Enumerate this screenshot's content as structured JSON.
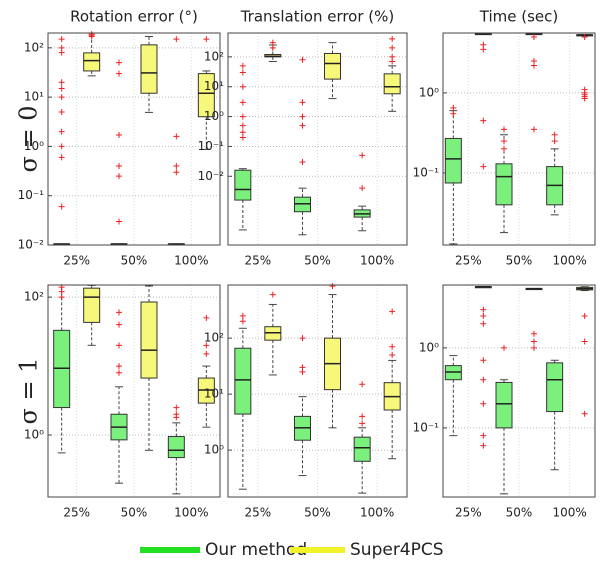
{
  "row_labels": [
    "σ = 0",
    "σ = 1"
  ],
  "chart_data": [
    {
      "type": "box",
      "title": "Rotation error (°)",
      "categories": [
        "25%",
        "50%",
        "100%"
      ],
      "log_y": true,
      "grid": true,
      "ylim": [
        0.01,
        200
      ],
      "yticks": [
        {
          "value": 0.01,
          "label": "10⁻²"
        },
        {
          "value": 0.1,
          "label": "10⁻¹"
        },
        {
          "value": 1,
          "label": "10⁰"
        },
        {
          "value": 10,
          "label": "10¹"
        },
        {
          "value": 100,
          "label": "10²"
        }
      ],
      "series": [
        {
          "name": "Our method",
          "color": "#7cf07c",
          "boxes": [
            {
              "whislo": 0.0105,
              "q1": 0.0105,
              "med": 0.0105,
              "q3": 0.0105,
              "whishi": 0.0105,
              "fliers": [
                150,
                100,
                80,
                20,
                15,
                10,
                5,
                2,
                1,
                0.6,
                0.06
              ]
            },
            {
              "whislo": 0.0105,
              "q1": 0.0105,
              "med": 0.0105,
              "q3": 0.0105,
              "whishi": 0.0105,
              "fliers": [
                50,
                30,
                1.7,
                0.4,
                0.25,
                0.03
              ]
            },
            {
              "whislo": 0.0105,
              "q1": 0.0105,
              "med": 0.0105,
              "q3": 0.0105,
              "whishi": 0.0105,
              "fliers": [
                150,
                1.6,
                0.4,
                0.3
              ]
            }
          ]
        },
        {
          "name": "Super4PCS",
          "color": "#f7f77a",
          "boxes": [
            {
              "whislo": 27,
              "q1": 34,
              "med": 55,
              "q3": 79,
              "whishi": 200,
              "fliers": [
                170,
                180,
                190
              ]
            },
            {
              "whislo": 4.9,
              "q1": 12,
              "med": 31,
              "q3": 115,
              "whishi": 170,
              "fliers": []
            },
            {
              "whislo": 0.87,
              "q1": 4,
              "med": 12,
              "q3": 30,
              "whishi": 34,
              "fliers": [
                150
              ]
            }
          ]
        }
      ]
    },
    {
      "type": "box",
      "title": "Translation error (%)",
      "categories": [
        "25%",
        "50%",
        "100%"
      ],
      "log_y": true,
      "grid": true,
      "ylim": [
        5e-05,
        630
      ],
      "yticks": [
        {
          "value": 0.01,
          "label": "10⁻²"
        },
        {
          "value": 0.1,
          "label": "10⁻¹"
        },
        {
          "value": 1,
          "label": "10⁰"
        },
        {
          "value": 10,
          "label": "10¹"
        },
        {
          "value": 100,
          "label": "10²"
        }
      ],
      "series": [
        {
          "name": "Our method",
          "color": "#7cf07c",
          "boxes": [
            {
              "whislo": 0.00016,
              "q1": 0.0016,
              "med": 0.0036,
              "q3": 0.016,
              "whishi": 0.018,
              "fliers": [
                50,
                30,
                10,
                3,
                1,
                0.5,
                0.3,
                0.2
              ]
            },
            {
              "whislo": 0.00011,
              "q1": 0.00065,
              "med": 0.0012,
              "q3": 0.002,
              "whishi": 0.004,
              "fliers": [
                80,
                3,
                1,
                0.5,
                0.03
              ]
            },
            {
              "whislo": 0.00015,
              "q1": 0.00043,
              "med": 0.00055,
              "q3": 0.00075,
              "whishi": 0.001,
              "fliers": [
                0.05,
                0.004
              ]
            }
          ]
        },
        {
          "name": "Super4PCS",
          "color": "#f7f77a",
          "boxes": [
            {
              "whislo": 70,
              "q1": 100,
              "med": 105,
              "q3": 120,
              "whishi": 250,
              "fliers": [
                300,
                200
              ]
            },
            {
              "whislo": 4,
              "q1": 18,
              "med": 60,
              "q3": 130,
              "whishi": 300,
              "fliers": []
            },
            {
              "whislo": 1.5,
              "q1": 5.8,
              "med": 10,
              "q3": 27,
              "whishi": 50,
              "fliers": [
                400,
                200,
                100,
                70
              ]
            }
          ]
        }
      ]
    },
    {
      "type": "box",
      "title": "Time (sec)",
      "categories": [
        "25%",
        "50%",
        "100%"
      ],
      "log_y": true,
      "grid": true,
      "ylim": [
        0.0126,
        5.6
      ],
      "yticks": [
        {
          "value": 0.1,
          "label": "10⁻¹"
        },
        {
          "value": 1,
          "label": "10⁰"
        }
      ],
      "series": [
        {
          "name": "Our method",
          "color": "#7cf07c",
          "boxes": [
            {
              "whislo": 0.013,
              "q1": 0.075,
              "med": 0.15,
              "q3": 0.27,
              "whishi": 0.6,
              "fliers": [
                0.65,
                0.55
              ]
            },
            {
              "whislo": 0.018,
              "q1": 0.04,
              "med": 0.09,
              "q3": 0.13,
              "whishi": 0.3,
              "fliers": [
                0.35,
                0.25,
                0.2
              ]
            },
            {
              "whislo": 0.03,
              "q1": 0.04,
              "med": 0.07,
              "q3": 0.12,
              "whishi": 0.2,
              "fliers": [
                0.3,
                0.25
              ]
            }
          ]
        },
        {
          "name": "Super4PCS",
          "color": "#f7f77a",
          "boxes": [
            {
              "whislo": 5.5,
              "q1": 5.5,
              "med": 5.5,
              "q3": 5.5,
              "whishi": 5.5,
              "fliers": [
                4,
                3.5,
                0.45,
                0.12
              ]
            },
            {
              "whislo": 5.5,
              "q1": 5.5,
              "med": 5.5,
              "q3": 5.5,
              "whishi": 5.5,
              "fliers": [
                5,
                2.5,
                2.2,
                0.35
              ]
            },
            {
              "whislo": 5.3,
              "q1": 5.3,
              "med": 5.3,
              "q3": 5.3,
              "whishi": 5.3,
              "fliers": [
                5,
                1.1,
                1,
                0.95,
                0.9,
                0.85
              ]
            }
          ]
        }
      ]
    },
    {
      "type": "box",
      "categories": [
        "25%",
        "50%",
        "100%"
      ],
      "log_y": true,
      "grid": true,
      "ylim": [
        0.126,
        150
      ],
      "yticks": [
        {
          "value": 1,
          "label": "10⁰"
        },
        {
          "value": 100,
          "label": "10²"
        }
      ],
      "series": [
        {
          "name": "Our method",
          "color": "#7cf07c",
          "boxes": [
            {
              "whislo": 0.55,
              "q1": 2.5,
              "med": 9.3,
              "q3": 33,
              "whishi": 150,
              "fliers": [
                140,
                120,
                100
              ]
            },
            {
              "whislo": 0.2,
              "q1": 0.85,
              "med": 1.3,
              "q3": 2,
              "whishi": 5,
              "fliers": [
                60,
                40,
                20,
                10,
                8
              ]
            },
            {
              "whislo": 0.14,
              "q1": 0.47,
              "med": 0.6,
              "q3": 0.95,
              "whishi": 1.5,
              "fliers": [
                2.5,
                2,
                1.8
              ]
            }
          ]
        },
        {
          "name": "Super4PCS",
          "color": "#f7f77a",
          "boxes": [
            {
              "whislo": 20,
              "q1": 43,
              "med": 100,
              "q3": 135,
              "whishi": 148,
              "fliers": []
            },
            {
              "whislo": 0.6,
              "q1": 6.7,
              "med": 17,
              "q3": 85,
              "whishi": 145,
              "fliers": []
            },
            {
              "whislo": 1.3,
              "q1": 2.9,
              "med": 4.5,
              "q3": 6.7,
              "whishi": 10,
              "fliers": [
                50,
                20,
                15
              ]
            }
          ]
        }
      ]
    },
    {
      "type": "box",
      "categories": [
        "25%",
        "50%",
        "100%"
      ],
      "log_y": true,
      "grid": true,
      "ylim": [
        0.145,
        890
      ],
      "yticks": [
        {
          "value": 1,
          "label": "10⁰"
        },
        {
          "value": 10,
          "label": "10¹"
        },
        {
          "value": 100,
          "label": "10²"
        }
      ],
      "series": [
        {
          "name": "Our method",
          "color": "#7cf07c",
          "boxes": [
            {
              "whislo": 0.2,
              "q1": 4.4,
              "med": 18,
              "q3": 66,
              "whishi": 150,
              "fliers": [
                250,
                200
              ]
            },
            {
              "whislo": 0.35,
              "q1": 1.5,
              "med": 2.5,
              "q3": 4,
              "whishi": 9,
              "fliers": [
                100,
                30,
                25
              ]
            },
            {
              "whislo": 0.17,
              "q1": 0.63,
              "med": 1.1,
              "q3": 1.7,
              "whishi": 2.5,
              "fliers": [
                15,
                4,
                3
              ]
            }
          ]
        },
        {
          "name": "Super4PCS",
          "color": "#f7f77a",
          "boxes": [
            {
              "whislo": 22,
              "q1": 92,
              "med": 125,
              "q3": 160,
              "whishi": 400,
              "fliers": [
                600
              ]
            },
            {
              "whislo": 2.5,
              "q1": 12,
              "med": 35,
              "q3": 100,
              "whishi": 600,
              "fliers": [
                850
              ]
            },
            {
              "whislo": 0.7,
              "q1": 5.2,
              "med": 9,
              "q3": 16,
              "whishi": 40,
              "fliers": [
                300,
                70,
                50
              ]
            }
          ]
        }
      ]
    },
    {
      "type": "box",
      "categories": [
        "25%",
        "50%",
        "100%"
      ],
      "log_y": true,
      "grid": true,
      "ylim": [
        0.0137,
        6.1
      ],
      "yticks": [
        {
          "value": 0.1,
          "label": "10⁻¹"
        },
        {
          "value": 1,
          "label": "10⁰"
        }
      ],
      "series": [
        {
          "name": "Our method",
          "color": "#7cf07c",
          "boxes": [
            {
              "whislo": 0.08,
              "q1": 0.4,
              "med": 0.5,
              "q3": 0.6,
              "whishi": 0.8,
              "fliers": []
            },
            {
              "whislo": 0.015,
              "q1": 0.1,
              "med": 0.2,
              "q3": 0.37,
              "whishi": 0.4,
              "fliers": [
                1
              ]
            },
            {
              "whislo": 0.03,
              "q1": 0.16,
              "med": 0.4,
              "q3": 0.65,
              "whishi": 0.7,
              "fliers": []
            }
          ]
        },
        {
          "name": "Super4PCS",
          "color": "#f7f77a",
          "boxes": [
            {
              "whislo": 5.8,
              "q1": 5.8,
              "med": 5.8,
              "q3": 5.8,
              "whishi": 5.8,
              "fliers": [
                3,
                2.5,
                2,
                0.7,
                0.4,
                0.2,
                0.08,
                0.06
              ]
            },
            {
              "whislo": 5.5,
              "q1": 5.5,
              "med": 5.5,
              "q3": 5.5,
              "whishi": 5.5,
              "fliers": [
                1.5,
                1.2,
                1
              ]
            },
            {
              "whislo": 5.2,
              "q1": 5.3,
              "med": 5.5,
              "q3": 5.7,
              "whishi": 5.8,
              "fliers": [
                2.5,
                1.2,
                0.15
              ]
            }
          ]
        }
      ]
    }
  ]
}
